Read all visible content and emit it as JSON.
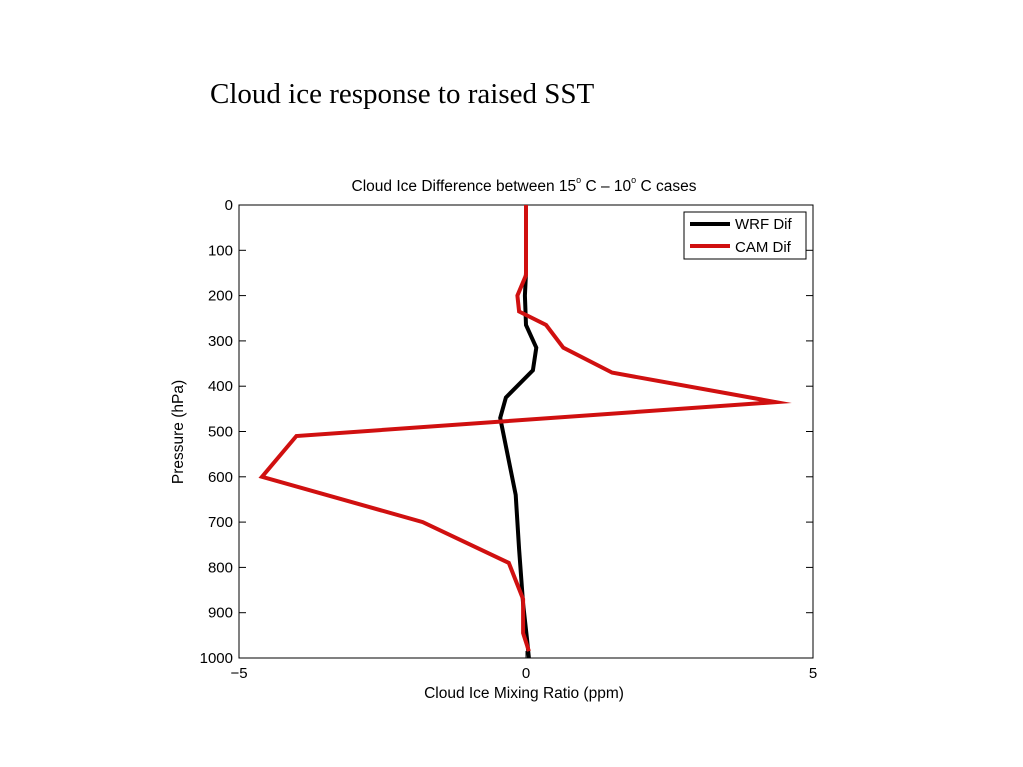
{
  "slide": {
    "title": "Cloud ice response to raised SST"
  },
  "chart_data": {
    "type": "line",
    "title": "Cloud Ice Difference between 15° C – 10° C cases",
    "title_parts": {
      "pre": "Cloud Ice Difference between 15",
      "mid": " C – 10",
      "post": " C cases",
      "degree": "o"
    },
    "xlabel": "Cloud Ice Mixing Ratio (ppm)",
    "ylabel": "Pressure (hPa)",
    "xlim": [
      -5,
      5
    ],
    "ylim": [
      0,
      1000
    ],
    "y_reversed": true,
    "xticks": [
      -5,
      0,
      5
    ],
    "xtick_labels": [
      "−5",
      "0",
      "5"
    ],
    "yticks": [
      0,
      100,
      200,
      300,
      400,
      500,
      600,
      700,
      800,
      900,
      1000
    ],
    "grid": false,
    "legend_position": "top-right",
    "series": [
      {
        "name": "WRF Dif",
        "color": "#000000",
        "x": [
          0.0,
          0.0,
          0.0,
          -0.02,
          0.0,
          0.18,
          0.12,
          -0.35,
          -0.45,
          -0.18,
          -0.12,
          -0.05,
          0.02,
          0.05
        ],
        "y": [
          0,
          100,
          150,
          200,
          265,
          315,
          365,
          425,
          470,
          640,
          760,
          880,
          960,
          1000
        ]
      },
      {
        "name": "CAM Dif",
        "color": "#d01010",
        "x": [
          0.0,
          0.0,
          0.0,
          -0.15,
          -0.12,
          0.35,
          0.65,
          1.5,
          4.35,
          -4.0,
          -4.6,
          -1.8,
          -0.3,
          -0.05,
          -0.05,
          0.05
        ],
        "y": [
          0,
          100,
          155,
          200,
          235,
          265,
          315,
          370,
          435,
          510,
          600,
          700,
          790,
          870,
          945,
          985
        ]
      }
    ]
  }
}
